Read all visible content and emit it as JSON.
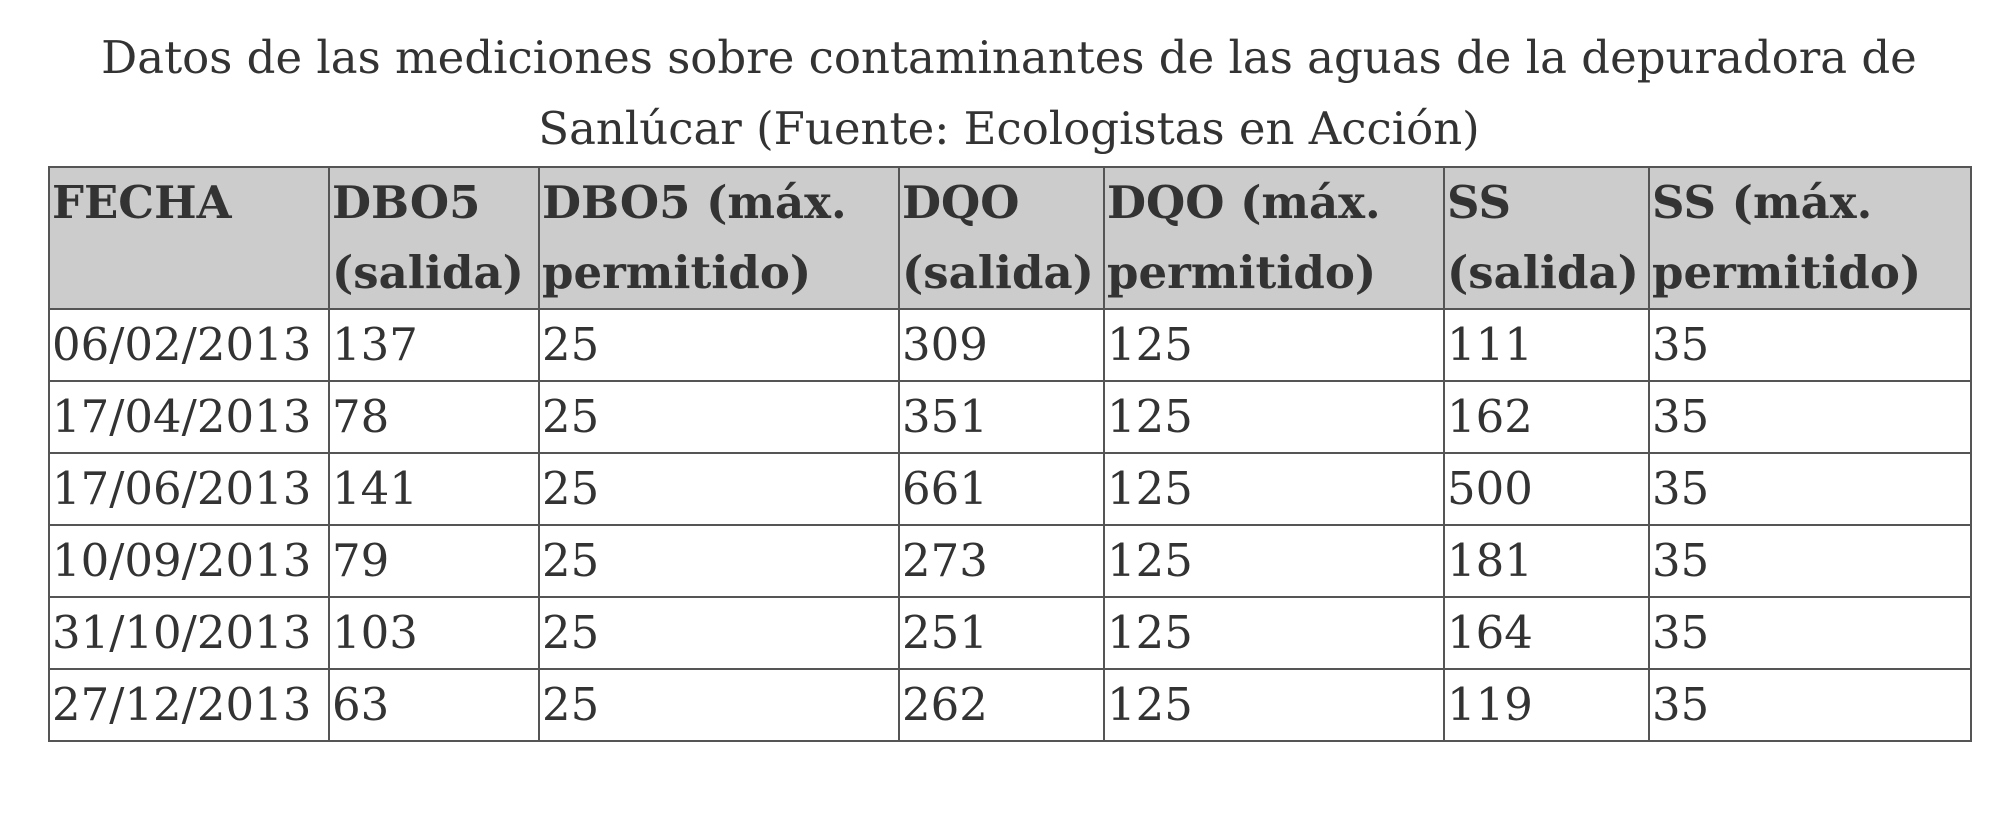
{
  "caption": "Datos de las mediciones sobre contaminantes de las aguas de la depuradora de Sanlúcar (Fuente: Ecologistas en Acción)",
  "table": {
    "headers": [
      "FECHA",
      "DBO5 (salida)",
      "DBO5 (máx. permitido)",
      "DQO (salida)",
      "DQO (máx. permitido)",
      "SS (salida)",
      "SS (máx. permitido)"
    ],
    "rows": [
      [
        "06/02/2013",
        "137",
        "25",
        "309",
        "125",
        "111",
        "35"
      ],
      [
        "17/04/2013",
        "78",
        "25",
        "351",
        "125",
        "162",
        "35"
      ],
      [
        "17/06/2013",
        "141",
        "25",
        "661",
        "125",
        "500",
        "35"
      ],
      [
        "10/09/2013",
        "79",
        "25",
        "273",
        "125",
        "181",
        "35"
      ],
      [
        "31/10/2013",
        "103",
        "25",
        "251",
        "125",
        "164",
        "35"
      ],
      [
        "27/12/2013",
        "63",
        "25",
        "262",
        "125",
        "119",
        "35"
      ]
    ]
  },
  "colors": {
    "header_background": "#cccccc",
    "border": "#555555",
    "text": "#333333"
  }
}
